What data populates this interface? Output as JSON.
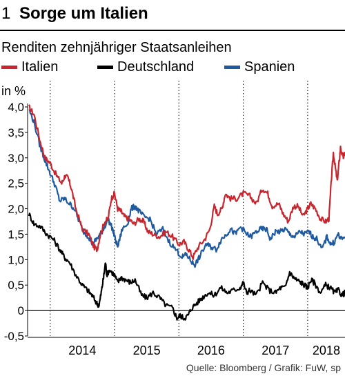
{
  "header": {
    "number": "1",
    "title": "Sorge um Italien"
  },
  "subtitle": "Renditen zehnjähriger Staatsanleihen",
  "source": "Quelle: Bloomberg / Grafik: FuW, sp",
  "chart_data": {
    "type": "line",
    "title": "Sorge um Italien",
    "subtitle": "Renditen zehnjähriger Staatsanleihen",
    "ylabel": "in %",
    "ylim": [
      -0.5,
      4.0
    ],
    "xlim": [
      2013.65,
      2018.58
    ],
    "yticks": [
      4.0,
      3.5,
      3.0,
      2.5,
      2.0,
      1.5,
      1.0,
      0.5,
      0,
      -0.5
    ],
    "ytick_labels": [
      "4,0",
      "3,5",
      "3,0",
      "2,5",
      "2,0",
      "1,5",
      "1,0",
      "0,5",
      "0",
      "-0,5"
    ],
    "xtick_labels": [
      "2014",
      "2015",
      "2016",
      "2017",
      "2018"
    ],
    "year_separators": [
      2014,
      2015,
      2016,
      2017,
      2018
    ],
    "grid": "vertical dotted at year boundaries, solid zero line",
    "legend_position": "top",
    "series": [
      {
        "name": "Italien",
        "color": "#c8262e",
        "points": [
          [
            2013.67,
            4.0
          ],
          [
            2013.75,
            3.85
          ],
          [
            2013.85,
            3.3
          ],
          [
            2013.92,
            3.0
          ],
          [
            2014.0,
            2.9
          ],
          [
            2014.1,
            2.65
          ],
          [
            2014.18,
            2.5
          ],
          [
            2014.23,
            2.65
          ],
          [
            2014.28,
            2.6
          ],
          [
            2014.33,
            2.4
          ],
          [
            2014.4,
            2.0
          ],
          [
            2014.5,
            1.6
          ],
          [
            2014.6,
            1.5
          ],
          [
            2014.68,
            1.25
          ],
          [
            2014.73,
            1.2
          ],
          [
            2014.78,
            1.5
          ],
          [
            2014.85,
            1.75
          ],
          [
            2014.9,
            1.8
          ],
          [
            2014.95,
            2.2
          ],
          [
            2015.0,
            2.3
          ],
          [
            2015.05,
            2.0
          ],
          [
            2015.1,
            1.95
          ],
          [
            2015.15,
            1.85
          ],
          [
            2015.22,
            1.8
          ],
          [
            2015.3,
            1.7
          ],
          [
            2015.38,
            1.8
          ],
          [
            2015.45,
            1.75
          ],
          [
            2015.52,
            1.55
          ],
          [
            2015.6,
            1.5
          ],
          [
            2015.7,
            1.45
          ],
          [
            2015.8,
            1.55
          ],
          [
            2015.9,
            1.45
          ],
          [
            2016.0,
            1.3
          ],
          [
            2016.08,
            1.35
          ],
          [
            2016.15,
            1.2
          ],
          [
            2016.22,
            1.05
          ],
          [
            2016.3,
            1.25
          ],
          [
            2016.4,
            1.4
          ],
          [
            2016.48,
            1.6
          ],
          [
            2016.55,
            2.05
          ],
          [
            2016.6,
            1.9
          ],
          [
            2016.67,
            2.0
          ],
          [
            2016.72,
            2.3
          ],
          [
            2016.8,
            2.2
          ],
          [
            2016.9,
            2.2
          ],
          [
            2017.0,
            2.3
          ],
          [
            2017.1,
            2.25
          ],
          [
            2017.2,
            2.1
          ],
          [
            2017.3,
            2.4
          ],
          [
            2017.38,
            2.3
          ],
          [
            2017.45,
            2.05
          ],
          [
            2017.55,
            2.1
          ],
          [
            2017.62,
            1.9
          ],
          [
            2017.7,
            1.75
          ],
          [
            2017.78,
            2.05
          ],
          [
            2017.85,
            2.05
          ],
          [
            2017.93,
            1.85
          ],
          [
            2018.0,
            2.0
          ],
          [
            2018.05,
            2.1
          ],
          [
            2018.12,
            2.0
          ],
          [
            2018.2,
            1.8
          ],
          [
            2018.28,
            1.75
          ],
          [
            2018.33,
            1.8
          ],
          [
            2018.37,
            2.6
          ],
          [
            2018.4,
            3.1
          ],
          [
            2018.43,
            2.8
          ],
          [
            2018.46,
            2.55
          ],
          [
            2018.48,
            2.8
          ],
          [
            2018.51,
            3.2
          ],
          [
            2018.55,
            3.0
          ],
          [
            2018.58,
            3.1
          ]
        ]
      },
      {
        "name": "Deutschland",
        "color": "#000000",
        "points": [
          [
            2013.67,
            1.9
          ],
          [
            2013.75,
            1.7
          ],
          [
            2013.85,
            1.65
          ],
          [
            2013.95,
            1.5
          ],
          [
            2014.05,
            1.4
          ],
          [
            2014.15,
            1.2
          ],
          [
            2014.22,
            1.05
          ],
          [
            2014.3,
            0.95
          ],
          [
            2014.4,
            0.7
          ],
          [
            2014.5,
            0.5
          ],
          [
            2014.58,
            0.4
          ],
          [
            2014.65,
            0.3
          ],
          [
            2014.72,
            0.15
          ],
          [
            2014.76,
            0.1
          ],
          [
            2014.8,
            0.4
          ],
          [
            2014.83,
            0.65
          ],
          [
            2014.86,
            0.95
          ],
          [
            2014.88,
            0.7
          ],
          [
            2014.92,
            0.8
          ],
          [
            2015.0,
            0.7
          ],
          [
            2015.05,
            0.55
          ],
          [
            2015.1,
            0.65
          ],
          [
            2015.18,
            0.6
          ],
          [
            2015.25,
            0.55
          ],
          [
            2015.32,
            0.6
          ],
          [
            2015.42,
            0.3
          ],
          [
            2015.5,
            0.25
          ],
          [
            2015.6,
            0.35
          ],
          [
            2015.7,
            0.25
          ],
          [
            2015.8,
            0.1
          ],
          [
            2015.9,
            0.05
          ],
          [
            2015.97,
            -0.15
          ],
          [
            2016.02,
            -0.1
          ],
          [
            2016.08,
            -0.15
          ],
          [
            2016.14,
            -0.1
          ],
          [
            2016.2,
            0.05
          ],
          [
            2016.28,
            0.15
          ],
          [
            2016.36,
            0.25
          ],
          [
            2016.45,
            0.35
          ],
          [
            2016.55,
            0.3
          ],
          [
            2016.65,
            0.45
          ],
          [
            2016.75,
            0.35
          ],
          [
            2016.85,
            0.4
          ],
          [
            2016.95,
            0.45
          ],
          [
            2017.0,
            0.55
          ],
          [
            2017.05,
            0.35
          ],
          [
            2017.1,
            0.4
          ],
          [
            2017.2,
            0.3
          ],
          [
            2017.3,
            0.55
          ],
          [
            2017.4,
            0.4
          ],
          [
            2017.5,
            0.35
          ],
          [
            2017.58,
            0.45
          ],
          [
            2017.65,
            0.45
          ],
          [
            2017.72,
            0.75
          ],
          [
            2017.78,
            0.65
          ],
          [
            2017.83,
            0.6
          ],
          [
            2017.9,
            0.55
          ],
          [
            2017.95,
            0.5
          ],
          [
            2018.0,
            0.45
          ],
          [
            2018.05,
            0.6
          ],
          [
            2018.1,
            0.55
          ],
          [
            2018.2,
            0.35
          ],
          [
            2018.28,
            0.5
          ],
          [
            2018.35,
            0.45
          ],
          [
            2018.42,
            0.35
          ],
          [
            2018.48,
            0.4
          ],
          [
            2018.53,
            0.3
          ],
          [
            2018.58,
            0.35
          ]
        ]
      },
      {
        "name": "Spanien",
        "color": "#1f5aa0",
        "points": [
          [
            2013.67,
            3.95
          ],
          [
            2013.75,
            3.7
          ],
          [
            2013.85,
            3.2
          ],
          [
            2013.92,
            2.95
          ],
          [
            2014.0,
            2.7
          ],
          [
            2014.08,
            2.45
          ],
          [
            2014.15,
            2.15
          ],
          [
            2014.22,
            2.2
          ],
          [
            2014.3,
            2.1
          ],
          [
            2014.38,
            2.0
          ],
          [
            2014.45,
            1.75
          ],
          [
            2014.52,
            1.55
          ],
          [
            2014.6,
            1.45
          ],
          [
            2014.66,
            1.3
          ],
          [
            2014.72,
            1.4
          ],
          [
            2014.78,
            1.5
          ],
          [
            2014.83,
            1.6
          ],
          [
            2014.9,
            1.8
          ],
          [
            2014.97,
            1.6
          ],
          [
            2015.0,
            1.45
          ],
          [
            2015.05,
            1.25
          ],
          [
            2015.12,
            1.6
          ],
          [
            2015.2,
            1.7
          ],
          [
            2015.26,
            2.0
          ],
          [
            2015.32,
            2.05
          ],
          [
            2015.38,
            1.95
          ],
          [
            2015.45,
            1.85
          ],
          [
            2015.55,
            1.8
          ],
          [
            2015.65,
            1.5
          ],
          [
            2015.75,
            1.6
          ],
          [
            2015.85,
            1.35
          ],
          [
            2015.95,
            1.2
          ],
          [
            2016.05,
            1.05
          ],
          [
            2016.12,
            1.1
          ],
          [
            2016.2,
            0.95
          ],
          [
            2016.25,
            0.9
          ],
          [
            2016.32,
            1.05
          ],
          [
            2016.42,
            1.3
          ],
          [
            2016.5,
            1.25
          ],
          [
            2016.58,
            1.2
          ],
          [
            2016.66,
            1.4
          ],
          [
            2016.74,
            1.5
          ],
          [
            2016.8,
            1.6
          ],
          [
            2016.88,
            1.5
          ],
          [
            2016.96,
            1.65
          ],
          [
            2017.05,
            1.5
          ],
          [
            2017.12,
            1.45
          ],
          [
            2017.2,
            1.55
          ],
          [
            2017.28,
            1.6
          ],
          [
            2017.36,
            1.6
          ],
          [
            2017.42,
            1.4
          ],
          [
            2017.5,
            1.55
          ],
          [
            2017.58,
            1.55
          ],
          [
            2017.65,
            1.6
          ],
          [
            2017.72,
            1.5
          ],
          [
            2017.8,
            1.45
          ],
          [
            2017.88,
            1.55
          ],
          [
            2017.95,
            1.5
          ],
          [
            2018.02,
            1.55
          ],
          [
            2018.08,
            1.45
          ],
          [
            2018.15,
            1.4
          ],
          [
            2018.22,
            1.2
          ],
          [
            2018.3,
            1.45
          ],
          [
            2018.36,
            1.3
          ],
          [
            2018.42,
            1.35
          ],
          [
            2018.47,
            1.5
          ],
          [
            2018.52,
            1.4
          ],
          [
            2018.58,
            1.45
          ]
        ]
      }
    ]
  }
}
